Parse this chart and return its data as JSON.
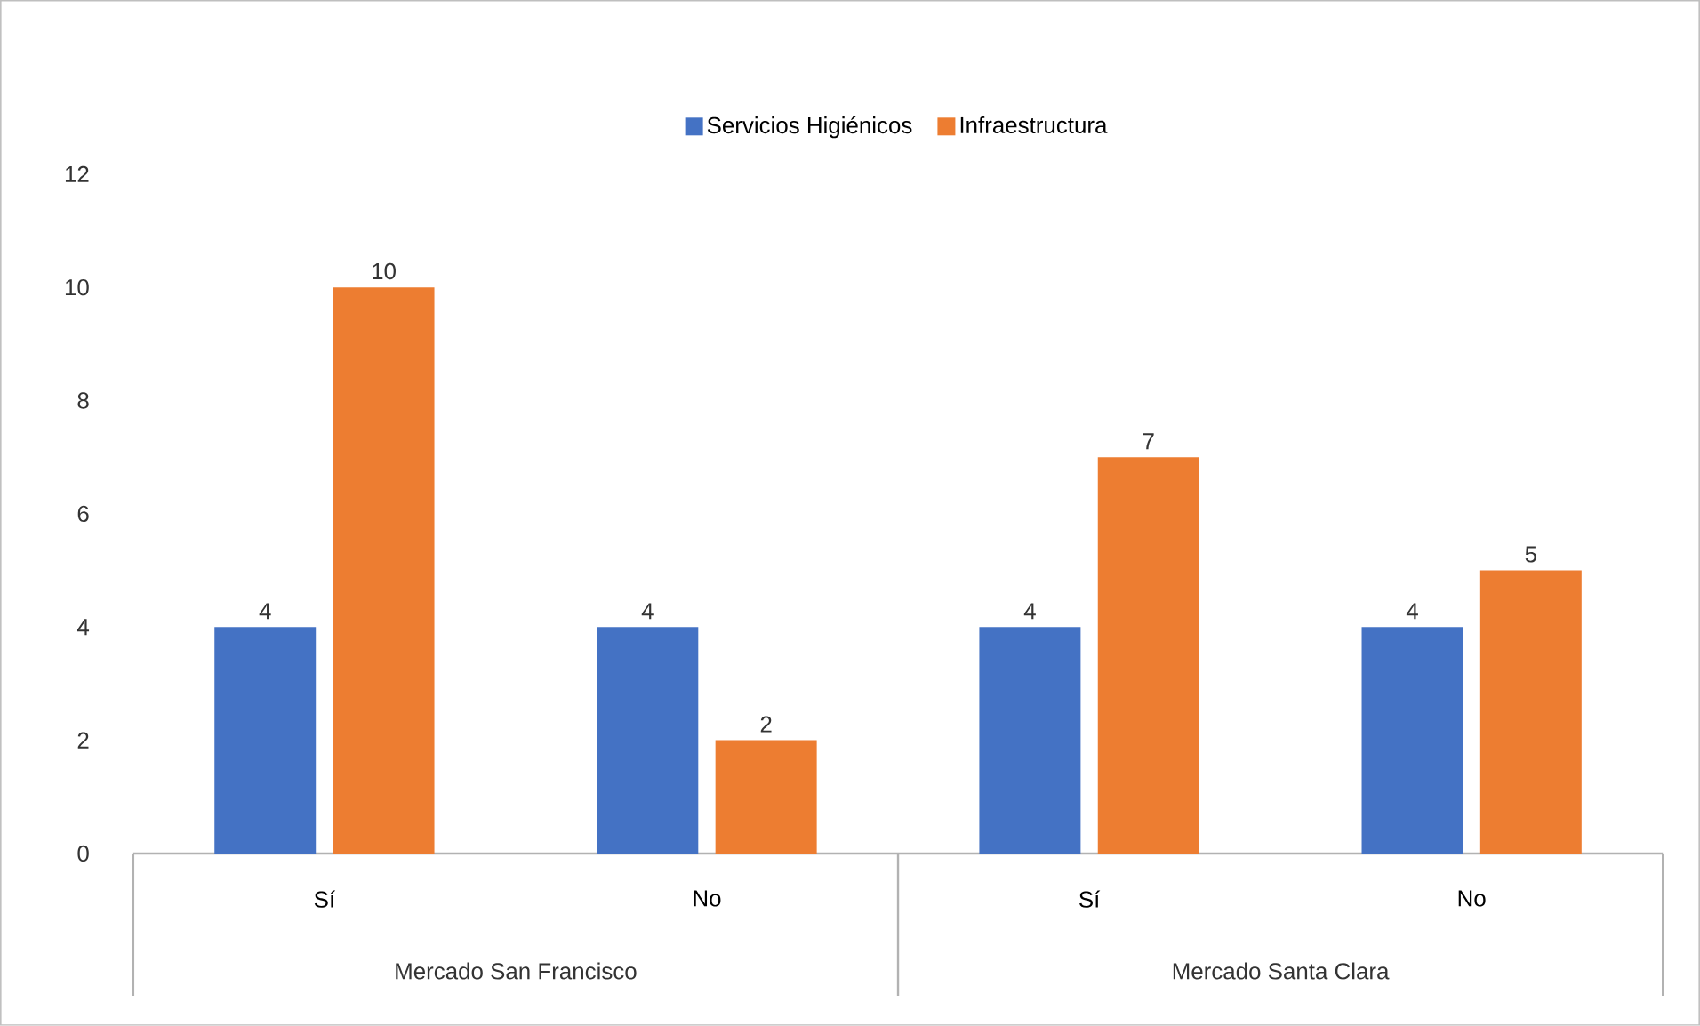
{
  "chart_data": {
    "type": "bar",
    "categories": [
      "Sí",
      "No",
      "Sí",
      "No"
    ],
    "series": [
      {
        "name": "Servicios Higiénicos",
        "color": "#4472c4",
        "values": [
          4,
          4,
          4,
          4
        ]
      },
      {
        "name": "Infraestructura",
        "color": "#ed7d31",
        "values": [
          10,
          2,
          7,
          5
        ]
      }
    ],
    "ylim": [
      0,
      12
    ],
    "yticks": [
      0,
      2,
      4,
      6,
      8,
      10,
      12
    ],
    "data_labels": true,
    "legend": "top",
    "annotations": [
      "Mercado San Francisco",
      "Mercado Santa Clara"
    ]
  }
}
